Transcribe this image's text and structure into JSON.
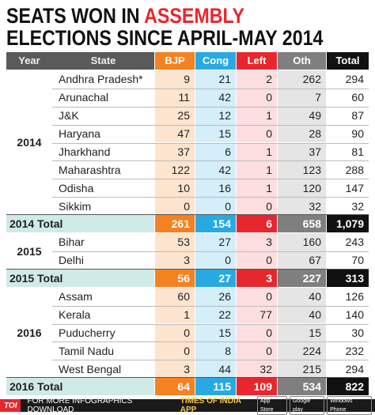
{
  "header": {
    "title_line1_a": "SEATS WON IN ",
    "title_line1_b": "ASSEMBLY",
    "title_line2": "ELECTIONS SINCE APRIL-MAY 2014"
  },
  "table": {
    "columns": [
      "Year",
      "State",
      "BJP",
      "Cong",
      "Left",
      "Oth",
      "Total"
    ],
    "groups": [
      {
        "year": "2014",
        "rows": [
          {
            "state": "Andhra Pradesh*",
            "values": [
              9,
              21,
              2,
              262,
              294
            ]
          },
          {
            "state": "Arunachal",
            "values": [
              11,
              42,
              0,
              7,
              60
            ]
          },
          {
            "state": "J&K",
            "values": [
              25,
              12,
              1,
              49,
              87
            ]
          },
          {
            "state": "Haryana",
            "values": [
              47,
              15,
              0,
              28,
              90
            ]
          },
          {
            "state": "Jharkhand",
            "values": [
              37,
              6,
              1,
              37,
              81
            ]
          },
          {
            "state": "Maharashtra",
            "values": [
              122,
              42,
              1,
              123,
              288
            ]
          },
          {
            "state": "Odisha",
            "values": [
              10,
              16,
              1,
              120,
              147
            ]
          },
          {
            "state": "Sikkim",
            "values": [
              0,
              0,
              0,
              32,
              32
            ]
          }
        ],
        "total": {
          "label": "2014 Total",
          "values": [
            261,
            154,
            6,
            658,
            "1,079"
          ]
        }
      },
      {
        "year": "2015",
        "rows": [
          {
            "state": "Bihar",
            "values": [
              53,
              27,
              3,
              160,
              243
            ]
          },
          {
            "state": "Delhi",
            "values": [
              3,
              0,
              0,
              67,
              70
            ]
          }
        ],
        "total": {
          "label": "2015 Total",
          "values": [
            56,
            27,
            3,
            227,
            313
          ]
        }
      },
      {
        "year": "2016",
        "rows": [
          {
            "state": "Assam",
            "values": [
              60,
              26,
              0,
              40,
              126
            ]
          },
          {
            "state": "Kerala",
            "values": [
              1,
              22,
              77,
              40,
              140
            ]
          },
          {
            "state": "Puducherry",
            "values": [
              0,
              15,
              0,
              15,
              30
            ]
          },
          {
            "state": "Tamil Nadu",
            "values": [
              0,
              8,
              0,
              224,
              232
            ]
          },
          {
            "state": "West Bengal",
            "values": [
              3,
              44,
              32,
              215,
              294
            ]
          }
        ],
        "total": {
          "label": "2016 Total",
          "values": [
            64,
            115,
            109,
            534,
            822
          ]
        }
      }
    ]
  },
  "footer": {
    "logo": "TOI",
    "text": "FOR MORE INFOGRAPHICS DOWNLOAD",
    "app": "TIMES OF INDIA APP",
    "badges": [
      "App Store",
      "Google play",
      "Windows Phone"
    ]
  }
}
